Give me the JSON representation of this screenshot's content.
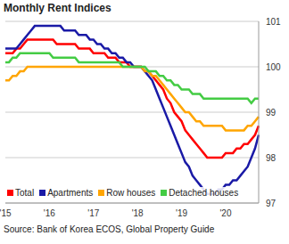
{
  "chart_data": {
    "type": "line",
    "title": "Monthly Rent Indices",
    "source": "Source: Bank of Korea ECOS, Global Property Guide",
    "categories": [
      "'15",
      null,
      null,
      null,
      null,
      null,
      null,
      null,
      null,
      null,
      null,
      null,
      "'16",
      null,
      null,
      null,
      null,
      null,
      null,
      null,
      null,
      null,
      null,
      null,
      "'17",
      null,
      null,
      null,
      null,
      null,
      null,
      null,
      null,
      null,
      null,
      null,
      "'18",
      null,
      null,
      null,
      null,
      null,
      null,
      null,
      null,
      null,
      null,
      null,
      "'19",
      null,
      null,
      null,
      null,
      null,
      null,
      null,
      null,
      null,
      null,
      null,
      "'20",
      null,
      null,
      null,
      null,
      null,
      null,
      null,
      null,
      null
    ],
    "series": [
      {
        "name": "Total",
        "color": "#ff0000",
        "values": [
          100.3,
          100.3,
          100.3,
          100.4,
          100.4,
          100.5,
          100.6,
          100.6,
          100.6,
          100.6,
          100.6,
          100.6,
          100.6,
          100.6,
          100.5,
          100.5,
          100.5,
          100.5,
          100.5,
          100.5,
          100.4,
          100.4,
          100.4,
          100.4,
          100.3,
          100.3,
          100.3,
          100.3,
          100.2,
          100.2,
          100.2,
          100.1,
          100.1,
          100.1,
          100.0,
          100.0,
          100.0,
          100.0,
          99.9,
          99.9,
          99.8,
          99.7,
          99.6,
          99.5,
          99.3,
          99.2,
          99.0,
          98.9,
          98.8,
          98.6,
          98.5,
          98.4,
          98.3,
          98.2,
          98.1,
          98.0,
          98.0,
          98.0,
          98.0,
          98.0,
          98.1,
          98.1,
          98.1,
          98.2,
          98.2,
          98.3,
          98.3,
          98.4,
          98.5,
          98.7
        ]
      },
      {
        "name": "Apartments",
        "color": "#1a1aa6",
        "values": [
          100.4,
          100.4,
          100.4,
          100.4,
          100.5,
          100.6,
          100.7,
          100.8,
          100.9,
          100.9,
          100.9,
          100.9,
          100.9,
          100.9,
          100.9,
          100.9,
          100.8,
          100.8,
          100.8,
          100.8,
          100.7,
          100.7,
          100.7,
          100.6,
          100.6,
          100.5,
          100.5,
          100.4,
          100.4,
          100.3,
          100.3,
          100.2,
          100.2,
          100.1,
          100.1,
          100.0,
          100.0,
          100.0,
          99.9,
          99.8,
          99.7,
          99.5,
          99.3,
          99.1,
          98.9,
          98.7,
          98.5,
          98.3,
          98.1,
          97.9,
          97.8,
          97.6,
          97.5,
          97.4,
          97.3,
          97.2,
          97.2,
          97.2,
          97.3,
          97.3,
          97.4,
          97.4,
          97.5,
          97.5,
          97.6,
          97.7,
          97.8,
          98.0,
          98.2,
          98.5
        ]
      },
      {
        "name": "Row houses",
        "color": "#ffa500",
        "values": [
          99.7,
          99.7,
          99.8,
          99.8,
          99.9,
          99.9,
          100.0,
          100.0,
          100.0,
          100.0,
          100.0,
          100.0,
          100.0,
          100.0,
          100.0,
          100.0,
          100.0,
          100.0,
          100.0,
          100.0,
          100.0,
          100.0,
          100.0,
          100.0,
          100.0,
          100.0,
          100.0,
          100.0,
          100.0,
          100.0,
          100.0,
          100.0,
          100.0,
          100.0,
          100.0,
          100.0,
          100.0,
          100.0,
          99.9,
          99.9,
          99.8,
          99.8,
          99.7,
          99.6,
          99.5,
          99.4,
          99.3,
          99.2,
          99.1,
          99.0,
          99.0,
          98.9,
          98.8,
          98.8,
          98.7,
          98.7,
          98.7,
          98.7,
          98.7,
          98.7,
          98.6,
          98.6,
          98.6,
          98.6,
          98.6,
          98.6,
          98.7,
          98.7,
          98.8,
          98.9
        ]
      },
      {
        "name": "Detached houses",
        "color": "#44cc44",
        "values": [
          100.1,
          100.1,
          100.2,
          100.2,
          100.3,
          100.3,
          100.3,
          100.3,
          100.3,
          100.3,
          100.3,
          100.3,
          100.3,
          100.2,
          100.2,
          100.2,
          100.2,
          100.2,
          100.2,
          100.2,
          100.1,
          100.1,
          100.1,
          100.1,
          100.1,
          100.1,
          100.1,
          100.1,
          100.1,
          100.1,
          100.1,
          100.1,
          100.0,
          100.0,
          100.0,
          100.0,
          100.0,
          100.0,
          100.0,
          99.9,
          99.9,
          99.9,
          99.8,
          99.8,
          99.7,
          99.7,
          99.6,
          99.6,
          99.5,
          99.5,
          99.5,
          99.4,
          99.4,
          99.4,
          99.3,
          99.3,
          99.3,
          99.3,
          99.3,
          99.3,
          99.3,
          99.3,
          99.3,
          99.3,
          99.3,
          99.3,
          99.3,
          99.2,
          99.3,
          99.3
        ]
      }
    ],
    "ylim": [
      97,
      101
    ],
    "yticks": [
      97,
      98,
      99,
      100,
      101
    ],
    "grid": true,
    "legend": "lower left"
  }
}
